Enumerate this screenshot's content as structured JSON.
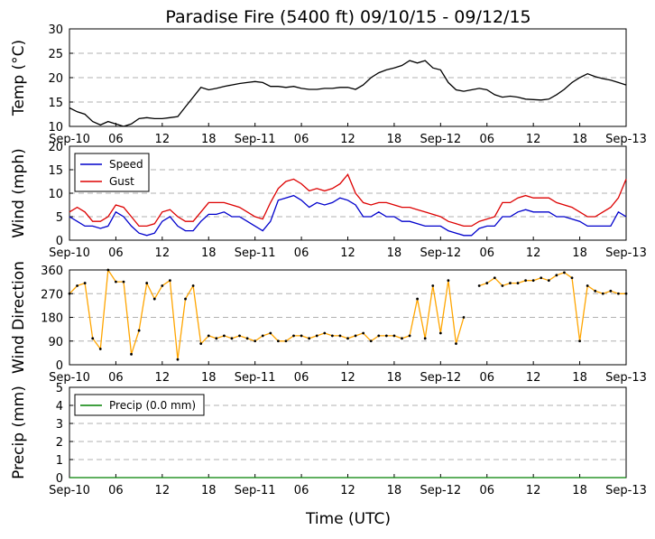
{
  "chart_data": {
    "title": "Paradise Fire (5400 ft) 09/10/15 - 09/12/15",
    "xlabel": "Time (UTC)",
    "x_tick_labels": [
      "Sep-10",
      "06",
      "12",
      "18",
      "Sep-11",
      "06",
      "12",
      "18",
      "Sep-12",
      "06",
      "12",
      "18",
      "Sep-13"
    ],
    "x_range_hours": [
      0,
      72
    ],
    "panels": [
      {
        "type": "line",
        "ylabel": "Temp ($^\\circ$C)",
        "ylabel_display": "Temp (°C)",
        "ylim": [
          10,
          30
        ],
        "yticks": [
          10,
          15,
          20,
          25,
          30
        ],
        "grid": true,
        "series": [
          {
            "color": "#000000",
            "hours": [
              0,
              1,
              2,
              3,
              4,
              5,
              6,
              7,
              8,
              9,
              10,
              11,
              12,
              13,
              14,
              15,
              16,
              17,
              18,
              19,
              20,
              21,
              22,
              23,
              24,
              25,
              26,
              27,
              28,
              29,
              30,
              31,
              32,
              33,
              34,
              35,
              36,
              37,
              38,
              39,
              40,
              41,
              42,
              43,
              44,
              45,
              46,
              47,
              48,
              49,
              50,
              51,
              52,
              53,
              54,
              55,
              56,
              57,
              58,
              59,
              60,
              61,
              62,
              63,
              64,
              65,
              66,
              67,
              68,
              69,
              70,
              71,
              72
            ],
            "values": [
              13.8,
              13,
              12.5,
              11,
              10.3,
              11,
              10.5,
              10,
              10.5,
              11.6,
              11.8,
              11.6,
              11.6,
              11.8,
              12,
              14,
              16,
              18,
              17.5,
              17.8,
              18.2,
              18.5,
              18.8,
              19,
              19.2,
              19,
              18.2,
              18.2,
              18,
              18.2,
              17.8,
              17.6,
              17.6,
              17.8,
              17.8,
              18,
              18,
              17.6,
              18.5,
              20,
              21,
              21.6,
              22,
              22.5,
              23.5,
              23,
              23.5,
              22,
              21.6,
              19,
              17.5,
              17.2,
              17.5,
              17.8,
              17.5,
              16.5,
              16,
              16.2,
              16,
              15.6,
              15.5,
              15.4,
              15.6,
              16.5,
              17.6,
              19,
              20,
              20.8,
              20.2,
              19.8,
              19.5,
              19,
              18.5
            ]
          }
        ]
      },
      {
        "type": "line",
        "ylabel": "Wind (mph)",
        "ylim": [
          0,
          20
        ],
        "yticks": [
          0,
          5,
          10,
          15,
          20
        ],
        "grid": true,
        "legend_location": "upper-left",
        "series": [
          {
            "name": "Speed",
            "color": "#0000cc",
            "hours": [
              0,
              1,
              2,
              3,
              4,
              5,
              6,
              7,
              8,
              9,
              10,
              11,
              12,
              13,
              14,
              15,
              16,
              17,
              18,
              19,
              20,
              21,
              22,
              23,
              24,
              25,
              26,
              27,
              28,
              29,
              30,
              31,
              32,
              33,
              34,
              35,
              36,
              37,
              38,
              39,
              40,
              41,
              42,
              43,
              44,
              45,
              46,
              47,
              48,
              49,
              50,
              51,
              52,
              53,
              54,
              55,
              56,
              57,
              58,
              59,
              60,
              61,
              62,
              63,
              64,
              65,
              66,
              67,
              68,
              69,
              70,
              71,
              72
            ],
            "values": [
              5,
              4,
              3,
              3,
              2.5,
              3,
              6,
              5,
              3,
              1.5,
              1,
              1.5,
              4,
              5,
              3,
              2,
              2,
              4,
              5.5,
              5.5,
              6,
              5,
              5,
              4,
              3,
              2,
              4,
              8.5,
              9,
              9.5,
              8.5,
              7,
              8,
              7.5,
              8,
              9,
              8.5,
              7.5,
              5,
              5,
              6,
              5,
              5,
              4,
              4,
              3.5,
              3,
              3,
              3,
              2,
              1.5,
              1,
              1,
              2.5,
              3,
              3,
              5,
              5,
              6,
              6.5,
              6,
              6,
              6,
              5,
              5,
              4.5,
              4,
              3,
              3,
              3,
              3,
              6,
              5
            ]
          },
          {
            "name": "Gust",
            "color": "#dd0000",
            "hours": [
              0,
              1,
              2,
              3,
              4,
              5,
              6,
              7,
              8,
              9,
              10,
              11,
              12,
              13,
              14,
              15,
              16,
              17,
              18,
              19,
              20,
              21,
              22,
              23,
              24,
              25,
              26,
              27,
              28,
              29,
              30,
              31,
              32,
              33,
              34,
              35,
              36,
              37,
              38,
              39,
              40,
              41,
              42,
              43,
              44,
              45,
              46,
              47,
              48,
              49,
              50,
              51,
              52,
              53,
              54,
              55,
              56,
              57,
              58,
              59,
              60,
              61,
              62,
              63,
              64,
              65,
              66,
              67,
              68,
              69,
              70,
              71,
              72
            ],
            "values": [
              6,
              7,
              6,
              4,
              4,
              5,
              7.5,
              7,
              5,
              3,
              3,
              3.5,
              6,
              6.5,
              5,
              4,
              4,
              6,
              8,
              8,
              8,
              7.5,
              7,
              6,
              5,
              4.5,
              8,
              11,
              12.5,
              13,
              12,
              10.5,
              11,
              10.5,
              11,
              12,
              14,
              10,
              8,
              7.5,
              8,
              8,
              7.5,
              7,
              7,
              6.5,
              6,
              5.5,
              5,
              4,
              3.5,
              3,
              3,
              4,
              4.5,
              5,
              8,
              8,
              9,
              9.5,
              9,
              9,
              9,
              8,
              7.5,
              7,
              6,
              5,
              5,
              6,
              7,
              9,
              13
            ]
          }
        ]
      },
      {
        "type": "scatter",
        "ylabel": "Wind Direction",
        "ylim": [
          0,
          360
        ],
        "yticks": [
          0,
          90,
          180,
          270,
          360
        ],
        "grid": true,
        "series": [
          {
            "color": "#ffa500",
            "marker_color": "#000000",
            "hours": [
              0,
              1,
              2,
              3,
              4,
              5,
              6,
              7,
              8,
              9,
              10,
              11,
              12,
              13,
              14,
              15,
              16,
              17,
              18,
              19,
              20,
              21,
              22,
              23,
              24,
              25,
              26,
              27,
              28,
              29,
              30,
              31,
              32,
              33,
              34,
              35,
              36,
              37,
              38,
              39,
              40,
              41,
              42,
              43,
              44,
              45,
              46,
              47,
              48,
              49,
              50,
              51,
              52,
              53,
              54,
              55,
              56,
              57,
              58,
              59,
              60,
              61,
              62,
              63,
              64,
              65,
              66,
              67,
              68,
              69,
              70,
              71,
              72
            ],
            "values": [
              270,
              300,
              310,
              100,
              60,
              360,
              315,
              315,
              40,
              130,
              310,
              250,
              300,
              320,
              20,
              250,
              300,
              80,
              110,
              100,
              110,
              100,
              110,
              100,
              90,
              110,
              120,
              90,
              90,
              110,
              110,
              100,
              110,
              120,
              110,
              110,
              100,
              110,
              120,
              90,
              110,
              110,
              110,
              100,
              110,
              250,
              100,
              300,
              120,
              320,
              80,
              180,
              null,
              300,
              310,
              330,
              300,
              310,
              310,
              320,
              320,
              330,
              320,
              340,
              350,
              330,
              90,
              300,
              280,
              270,
              280,
              270,
              270
            ]
          }
        ]
      },
      {
        "type": "line",
        "ylabel": "Precip (mm)",
        "ylim": [
          0,
          5
        ],
        "yticks": [
          0,
          1,
          2,
          3,
          4,
          5
        ],
        "grid": true,
        "legend_location": "upper-left",
        "series": [
          {
            "name": "Precip (0.0 mm)",
            "color": "#008000",
            "hours": [
              0,
              72
            ],
            "values": [
              0,
              0
            ]
          }
        ]
      }
    ]
  }
}
